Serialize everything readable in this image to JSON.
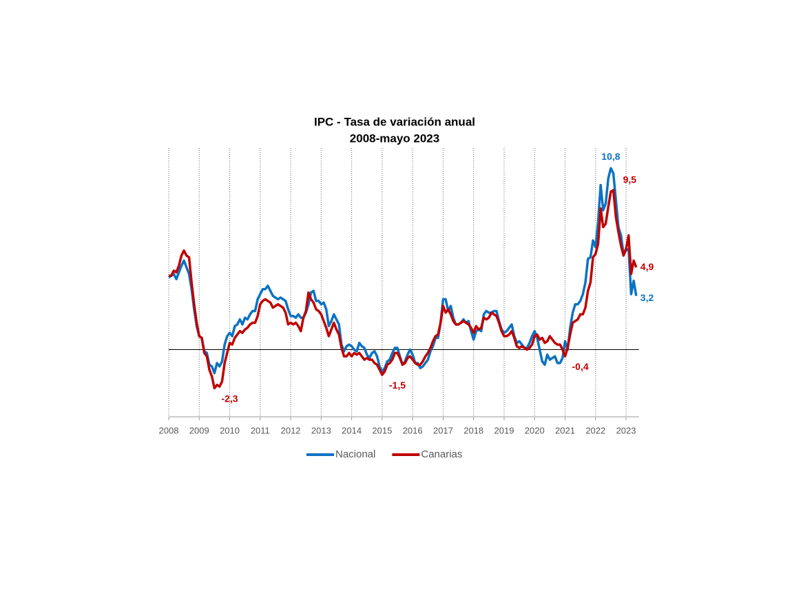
{
  "chart_data": {
    "type": "line",
    "title": "IPC - Tasa de variación anual",
    "subtitle": "2008-mayo 2023",
    "categories": [
      "2008",
      null,
      null,
      null,
      null,
      null,
      null,
      null,
      null,
      null,
      null,
      null,
      "2009",
      null,
      null,
      null,
      null,
      null,
      null,
      null,
      null,
      null,
      null,
      null,
      "2010",
      null,
      null,
      null,
      null,
      null,
      null,
      null,
      null,
      null,
      null,
      null,
      "2011",
      null,
      null,
      null,
      null,
      null,
      null,
      null,
      null,
      null,
      null,
      null,
      "2012",
      null,
      null,
      null,
      null,
      null,
      null,
      null,
      null,
      null,
      null,
      null,
      "2013",
      null,
      null,
      null,
      null,
      null,
      null,
      null,
      null,
      null,
      null,
      null,
      "2014",
      null,
      null,
      null,
      null,
      null,
      null,
      null,
      null,
      null,
      null,
      null,
      "2015",
      null,
      null,
      null,
      null,
      null,
      null,
      null,
      null,
      null,
      null,
      null,
      "2016",
      null,
      null,
      null,
      null,
      null,
      null,
      null,
      null,
      null,
      null,
      null,
      "2017",
      null,
      null,
      null,
      null,
      null,
      null,
      null,
      null,
      null,
      null,
      null,
      "2018",
      null,
      null,
      null,
      null,
      null,
      null,
      null,
      null,
      null,
      null,
      null,
      "2019",
      null,
      null,
      null,
      null,
      null,
      null,
      null,
      null,
      null,
      null,
      null,
      "2020",
      null,
      null,
      null,
      null,
      null,
      null,
      null,
      null,
      null,
      null,
      null,
      "2021",
      null,
      null,
      null,
      null,
      null,
      null,
      null,
      null,
      null,
      null,
      null,
      "2022",
      null,
      null,
      null,
      null,
      null,
      null,
      null,
      null,
      null,
      null,
      null,
      "2023",
      null,
      null,
      null,
      null
    ],
    "series": [
      {
        "name": "Nacional",
        "color": "#0b72c3",
        "values": [
          4.3,
          4.4,
          4.5,
          4.2,
          4.6,
          5.0,
          5.3,
          4.9,
          4.5,
          3.6,
          2.4,
          1.4,
          0.8,
          0.7,
          -0.1,
          -0.2,
          -0.9,
          -1.0,
          -1.4,
          -0.8,
          -1.0,
          -0.7,
          0.3,
          0.8,
          1.0,
          0.8,
          1.4,
          1.5,
          1.8,
          1.5,
          1.9,
          1.8,
          2.1,
          2.3,
          2.3,
          3.0,
          3.3,
          3.6,
          3.6,
          3.8,
          3.5,
          3.2,
          3.1,
          3.0,
          3.1,
          3.0,
          2.9,
          2.4,
          2.0,
          2.0,
          1.9,
          2.1,
          1.9,
          1.9,
          2.2,
          2.7,
          3.4,
          3.5,
          2.9,
          2.9,
          2.7,
          2.8,
          2.4,
          1.4,
          1.7,
          2.1,
          1.8,
          1.5,
          0.3,
          -0.1,
          0.2,
          0.3,
          0.2,
          0.0,
          -0.1,
          0.4,
          0.2,
          0.1,
          -0.3,
          -0.5,
          -0.2,
          -0.1,
          -0.4,
          -1.0,
          -1.3,
          -1.1,
          -0.7,
          -0.6,
          -0.2,
          0.1,
          0.1,
          -0.4,
          -0.9,
          -0.7,
          -0.3,
          0.0,
          -0.3,
          -0.8,
          -0.8,
          -1.1,
          -1.0,
          -0.8,
          -0.6,
          -0.1,
          0.2,
          0.7,
          0.7,
          1.6,
          3.0,
          3.0,
          2.3,
          2.6,
          1.9,
          1.5,
          1.5,
          1.6,
          1.8,
          1.6,
          1.7,
          1.1,
          0.6,
          1.1,
          1.2,
          1.1,
          2.1,
          2.3,
          2.2,
          2.2,
          2.3,
          2.3,
          1.7,
          1.2,
          1.0,
          1.1,
          1.3,
          1.5,
          0.8,
          0.4,
          0.5,
          0.3,
          0.1,
          0.1,
          0.4,
          0.8,
          1.1,
          0.7,
          0.0,
          -0.7,
          -0.9,
          -0.3,
          -0.6,
          -0.5,
          -0.4,
          -0.8,
          -0.8,
          -0.5,
          0.5,
          0.0,
          1.3,
          2.2,
          2.7,
          2.7,
          2.9,
          3.3,
          4.0,
          5.4,
          5.5,
          6.5,
          6.1,
          7.6,
          9.8,
          8.3,
          8.7,
          10.2,
          10.8,
          10.5,
          8.9,
          7.3,
          6.8,
          5.7,
          5.9,
          6.0,
          3.3,
          4.1,
          3.2
        ],
        "value_labels": [
          null,
          null,
          null,
          null,
          null,
          null,
          null,
          null,
          null,
          null,
          null,
          null,
          null,
          null,
          null,
          null,
          null,
          null,
          null,
          null,
          null,
          null,
          null,
          null,
          null,
          null,
          null,
          null,
          null,
          null,
          null,
          null,
          null,
          null,
          null,
          null,
          null,
          null,
          null,
          null,
          null,
          null,
          null,
          null,
          null,
          null,
          null,
          null,
          null,
          null,
          null,
          null,
          null,
          null,
          null,
          null,
          null,
          null,
          null,
          null,
          null,
          null,
          null,
          null,
          null,
          null,
          null,
          null,
          null,
          null,
          null,
          null,
          null,
          null,
          null,
          null,
          null,
          null,
          null,
          null,
          null,
          null,
          null,
          null,
          null,
          null,
          null,
          null,
          null,
          null,
          null,
          null,
          null,
          null,
          null,
          null,
          null,
          null,
          null,
          null,
          null,
          null,
          null,
          null,
          null,
          null,
          null,
          null,
          null,
          null,
          null,
          null,
          null,
          null,
          null,
          null,
          null,
          null,
          null,
          null,
          null,
          null,
          null,
          null,
          null,
          null,
          null,
          null,
          null,
          null,
          null,
          null,
          null,
          null,
          null,
          null,
          null,
          null,
          null,
          null,
          null,
          null,
          null,
          null,
          null,
          null,
          null,
          null,
          null,
          null,
          null,
          null,
          null,
          null,
          null,
          null,
          null,
          null,
          null,
          null,
          null,
          null,
          null,
          null,
          null,
          null,
          null,
          null,
          null,
          null,
          null,
          null,
          null,
          null,
          "10,8",
          null,
          null,
          null,
          null,
          null,
          null,
          null,
          null,
          null,
          "3,2"
        ]
      },
      {
        "name": "Canarias",
        "color": "#c00000",
        "values": [
          4.4,
          4.4,
          4.7,
          4.6,
          5.0,
          5.6,
          5.9,
          5.6,
          5.5,
          4.0,
          2.7,
          1.6,
          0.8,
          0.7,
          -0.2,
          -0.4,
          -1.2,
          -1.6,
          -2.3,
          -2.1,
          -2.2,
          -1.9,
          -0.8,
          -0.2,
          0.4,
          0.3,
          0.7,
          0.9,
          1.1,
          1.0,
          1.2,
          1.3,
          1.5,
          1.6,
          1.6,
          2.0,
          2.7,
          2.9,
          3.0,
          2.9,
          2.8,
          2.5,
          2.6,
          2.7,
          2.6,
          2.5,
          2.2,
          1.5,
          1.6,
          1.5,
          1.6,
          1.4,
          1.1,
          1.9,
          2.3,
          3.4,
          3.0,
          2.8,
          2.4,
          2.3,
          2.1,
          1.7,
          1.3,
          0.8,
          1.2,
          1.6,
          1.2,
          0.9,
          0.1,
          -0.4,
          -0.4,
          -0.2,
          -0.4,
          -0.2,
          -0.3,
          -0.2,
          -0.4,
          -0.6,
          -0.5,
          -0.6,
          -0.6,
          -0.8,
          -0.9,
          -1.2,
          -1.5,
          -1.3,
          -0.9,
          -0.8,
          -0.6,
          -0.2,
          -0.2,
          -0.5,
          -0.9,
          -0.8,
          -0.5,
          -0.4,
          -0.6,
          -0.8,
          -0.9,
          -0.9,
          -0.7,
          -0.4,
          -0.2,
          0.1,
          0.5,
          0.8,
          0.9,
          1.6,
          2.6,
          2.2,
          2.4,
          2.1,
          1.7,
          1.5,
          1.5,
          1.6,
          1.7,
          1.6,
          1.5,
          1.3,
          1.0,
          1.4,
          1.2,
          1.3,
          1.9,
          1.8,
          1.9,
          2.2,
          2.1,
          2.0,
          1.6,
          1.1,
          0.8,
          0.8,
          0.9,
          1.1,
          0.7,
          0.2,
          0.1,
          0.2,
          0.1,
          0.0,
          0.1,
          0.3,
          0.8,
          0.9,
          0.6,
          0.7,
          0.4,
          0.5,
          0.8,
          0.6,
          0.4,
          0.3,
          0.3,
          0.0,
          -0.4,
          0.1,
          0.9,
          1.6,
          1.7,
          1.8,
          2.1,
          2.1,
          2.5,
          3.5,
          4.0,
          5.5,
          5.7,
          6.3,
          8.4,
          7.3,
          7.5,
          8.5,
          9.4,
          9.5,
          7.9,
          7.0,
          6.2,
          5.6,
          6.0,
          6.8,
          4.5,
          5.3,
          4.9
        ],
        "value_labels": [
          null,
          null,
          null,
          null,
          null,
          null,
          null,
          null,
          null,
          null,
          null,
          null,
          null,
          null,
          null,
          null,
          null,
          null,
          "-2,3",
          null,
          null,
          null,
          null,
          null,
          null,
          null,
          null,
          null,
          null,
          null,
          null,
          null,
          null,
          null,
          null,
          null,
          null,
          null,
          null,
          null,
          null,
          null,
          null,
          null,
          null,
          null,
          null,
          null,
          null,
          null,
          null,
          null,
          null,
          null,
          null,
          null,
          null,
          null,
          null,
          null,
          null,
          null,
          null,
          null,
          null,
          null,
          null,
          null,
          null,
          null,
          null,
          null,
          null,
          null,
          null,
          null,
          null,
          null,
          null,
          null,
          null,
          null,
          null,
          null,
          "-1,5",
          null,
          null,
          null,
          null,
          null,
          null,
          null,
          null,
          null,
          null,
          null,
          null,
          null,
          null,
          null,
          null,
          null,
          null,
          null,
          null,
          null,
          null,
          null,
          null,
          null,
          null,
          null,
          null,
          null,
          null,
          null,
          null,
          null,
          null,
          null,
          null,
          null,
          null,
          null,
          null,
          null,
          null,
          null,
          null,
          null,
          null,
          null,
          null,
          null,
          null,
          null,
          null,
          null,
          null,
          null,
          null,
          null,
          null,
          null,
          null,
          null,
          null,
          null,
          null,
          null,
          null,
          null,
          null,
          null,
          null,
          null,
          "-0,4",
          null,
          null,
          null,
          null,
          null,
          null,
          null,
          null,
          null,
          null,
          null,
          null,
          null,
          null,
          null,
          null,
          null,
          null,
          "9,5",
          null,
          null,
          null,
          null,
          null,
          null,
          null,
          null,
          "4,9"
        ]
      }
    ],
    "ylim": [
      -4,
      12
    ],
    "zero_line": true,
    "grid": "x-dotted",
    "legend": "bottom"
  }
}
